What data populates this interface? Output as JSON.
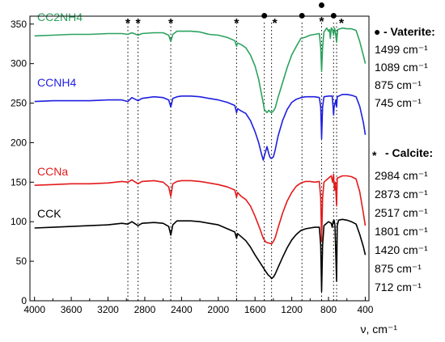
{
  "chart_data": {
    "type": "line",
    "xlabel": "ν, cm⁻¹",
    "xlim": [
      4050,
      360
    ],
    "ylim": [
      0,
      360
    ],
    "x_ticks": [
      4000,
      3600,
      3200,
      2800,
      2400,
      2000,
      1600,
      1200,
      800,
      400
    ],
    "y_ticks": [
      0,
      50,
      100,
      150,
      200,
      250,
      300,
      350
    ],
    "grid": false,
    "series": [
      {
        "name": "CC2NH4",
        "color": "#2ca25f",
        "points": [
          [
            4000,
            335
          ],
          [
            3800,
            336
          ],
          [
            3600,
            337
          ],
          [
            3400,
            337
          ],
          [
            3200,
            338
          ],
          [
            3050,
            338
          ],
          [
            2984,
            337
          ],
          [
            2940,
            339
          ],
          [
            2873,
            336
          ],
          [
            2830,
            338
          ],
          [
            2700,
            339
          ],
          [
            2600,
            339
          ],
          [
            2540,
            336
          ],
          [
            2517,
            328
          ],
          [
            2495,
            337
          ],
          [
            2450,
            341
          ],
          [
            2400,
            341
          ],
          [
            2300,
            341
          ],
          [
            2200,
            340
          ],
          [
            2100,
            337
          ],
          [
            2000,
            336
          ],
          [
            1900,
            333
          ],
          [
            1820,
            329
          ],
          [
            1801,
            322
          ],
          [
            1790,
            326
          ],
          [
            1750,
            324
          ],
          [
            1700,
            320
          ],
          [
            1650,
            311
          ],
          [
            1600,
            297
          ],
          [
            1560,
            280
          ],
          [
            1530,
            262
          ],
          [
            1510,
            250
          ],
          [
            1499,
            242
          ],
          [
            1470,
            238
          ],
          [
            1450,
            241
          ],
          [
            1435,
            239
          ],
          [
            1420,
            238
          ],
          [
            1400,
            240
          ],
          [
            1380,
            244
          ],
          [
            1350,
            257
          ],
          [
            1300,
            276
          ],
          [
            1250,
            295
          ],
          [
            1200,
            311
          ],
          [
            1150,
            322
          ],
          [
            1100,
            332
          ],
          [
            1060,
            333
          ],
          [
            1000,
            336
          ],
          [
            950,
            337
          ],
          [
            900,
            338
          ],
          [
            885,
            320
          ],
          [
            875,
            290
          ],
          [
            865,
            320
          ],
          [
            850,
            340
          ],
          [
            820,
            345
          ],
          [
            800,
            341
          ],
          [
            790,
            343
          ],
          [
            780,
            332
          ],
          [
            770,
            345
          ],
          [
            760,
            344
          ],
          [
            745,
            336
          ],
          [
            735,
            345
          ],
          [
            725,
            340
          ],
          [
            712,
            327
          ],
          [
            700,
            343
          ],
          [
            650,
            345
          ],
          [
            600,
            344
          ],
          [
            550,
            344
          ],
          [
            500,
            342
          ],
          [
            460,
            328
          ],
          [
            420,
            310
          ],
          [
            400,
            300
          ]
        ]
      },
      {
        "name": "CCNH4",
        "color": "#1f1fe0",
        "points": [
          [
            4000,
            252
          ],
          [
            3800,
            253
          ],
          [
            3600,
            253
          ],
          [
            3400,
            253
          ],
          [
            3200,
            254
          ],
          [
            3050,
            254
          ],
          [
            2984,
            252
          ],
          [
            2940,
            257
          ],
          [
            2873,
            253
          ],
          [
            2830,
            256
          ],
          [
            2700,
            258
          ],
          [
            2600,
            257
          ],
          [
            2540,
            254
          ],
          [
            2517,
            245
          ],
          [
            2495,
            256
          ],
          [
            2450,
            258
          ],
          [
            2400,
            259
          ],
          [
            2300,
            259
          ],
          [
            2200,
            258
          ],
          [
            2100,
            256
          ],
          [
            2000,
            254
          ],
          [
            1900,
            251
          ],
          [
            1820,
            247
          ],
          [
            1801,
            238
          ],
          [
            1790,
            243
          ],
          [
            1750,
            240
          ],
          [
            1700,
            237
          ],
          [
            1650,
            228
          ],
          [
            1600,
            214
          ],
          [
            1560,
            200
          ],
          [
            1530,
            186
          ],
          [
            1510,
            178
          ],
          [
            1499,
            183
          ],
          [
            1470,
            195
          ],
          [
            1450,
            186
          ],
          [
            1435,
            181
          ],
          [
            1420,
            180
          ],
          [
            1400,
            182
          ],
          [
            1380,
            191
          ],
          [
            1350,
            208
          ],
          [
            1300,
            228
          ],
          [
            1250,
            242
          ],
          [
            1200,
            251
          ],
          [
            1150,
            255
          ],
          [
            1100,
            257
          ],
          [
            1050,
            258
          ],
          [
            1000,
            258
          ],
          [
            950,
            258
          ],
          [
            900,
            257
          ],
          [
            885,
            245
          ],
          [
            875,
            205
          ],
          [
            865,
            245
          ],
          [
            850,
            258
          ],
          [
            800,
            259
          ],
          [
            760,
            259
          ],
          [
            750,
            245
          ],
          [
            745,
            235
          ],
          [
            740,
            245
          ],
          [
            720,
            254
          ],
          [
            712,
            245
          ],
          [
            705,
            258
          ],
          [
            650,
            261
          ],
          [
            600,
            261
          ],
          [
            550,
            260
          ],
          [
            500,
            258
          ],
          [
            460,
            246
          ],
          [
            420,
            225
          ],
          [
            400,
            210
          ]
        ]
      },
      {
        "name": "CCNa",
        "color": "#e41a1c",
        "points": [
          [
            4000,
            146
          ],
          [
            3800,
            147
          ],
          [
            3600,
            148
          ],
          [
            3400,
            148
          ],
          [
            3200,
            149
          ],
          [
            3050,
            151
          ],
          [
            2984,
            150
          ],
          [
            2940,
            153
          ],
          [
            2873,
            148
          ],
          [
            2830,
            151
          ],
          [
            2700,
            152
          ],
          [
            2600,
            150
          ],
          [
            2540,
            144
          ],
          [
            2517,
            132
          ],
          [
            2495,
            148
          ],
          [
            2450,
            151
          ],
          [
            2400,
            152
          ],
          [
            2300,
            152
          ],
          [
            2200,
            151
          ],
          [
            2100,
            149
          ],
          [
            2000,
            147
          ],
          [
            1900,
            144
          ],
          [
            1820,
            140
          ],
          [
            1801,
            131
          ],
          [
            1790,
            137
          ],
          [
            1750,
            132
          ],
          [
            1700,
            128
          ],
          [
            1650,
            120
          ],
          [
            1600,
            107
          ],
          [
            1550,
            92
          ],
          [
            1510,
            79
          ],
          [
            1480,
            74
          ],
          [
            1450,
            73
          ],
          [
            1420,
            72
          ],
          [
            1400,
            75
          ],
          [
            1380,
            80
          ],
          [
            1350,
            92
          ],
          [
            1300,
            111
          ],
          [
            1250,
            126
          ],
          [
            1200,
            137
          ],
          [
            1150,
            145
          ],
          [
            1100,
            149
          ],
          [
            1050,
            151
          ],
          [
            1000,
            151
          ],
          [
            950,
            150
          ],
          [
            900,
            151
          ],
          [
            885,
            130
          ],
          [
            875,
            75
          ],
          [
            865,
            130
          ],
          [
            850,
            150
          ],
          [
            800,
            155
          ],
          [
            770,
            158
          ],
          [
            755,
            150
          ],
          [
            745,
            160
          ],
          [
            735,
            140
          ],
          [
            725,
            150
          ],
          [
            712,
            120
          ],
          [
            705,
            155
          ],
          [
            650,
            158
          ],
          [
            600,
            158
          ],
          [
            550,
            157
          ],
          [
            500,
            154
          ],
          [
            460,
            138
          ],
          [
            420,
            110
          ],
          [
            400,
            95
          ]
        ]
      },
      {
        "name": "CCK",
        "color": "#000000",
        "points": [
          [
            4000,
            92
          ],
          [
            3800,
            93
          ],
          [
            3600,
            94
          ],
          [
            3400,
            95
          ],
          [
            3200,
            96
          ],
          [
            3050,
            98
          ],
          [
            2984,
            97
          ],
          [
            2940,
            100
          ],
          [
            2873,
            95
          ],
          [
            2830,
            98
          ],
          [
            2700,
            99
          ],
          [
            2600,
            98
          ],
          [
            2540,
            94
          ],
          [
            2517,
            83
          ],
          [
            2495,
            96
          ],
          [
            2450,
            101
          ],
          [
            2400,
            101
          ],
          [
            2300,
            101
          ],
          [
            2200,
            100
          ],
          [
            2100,
            98
          ],
          [
            2000,
            96
          ],
          [
            1900,
            91
          ],
          [
            1820,
            87
          ],
          [
            1801,
            79
          ],
          [
            1790,
            85
          ],
          [
            1750,
            81
          ],
          [
            1700,
            76
          ],
          [
            1650,
            68
          ],
          [
            1600,
            58
          ],
          [
            1550,
            49
          ],
          [
            1500,
            40
          ],
          [
            1460,
            33
          ],
          [
            1430,
            30
          ],
          [
            1420,
            28
          ],
          [
            1400,
            30
          ],
          [
            1380,
            34
          ],
          [
            1350,
            42
          ],
          [
            1300,
            55
          ],
          [
            1250,
            67
          ],
          [
            1200,
            77
          ],
          [
            1150,
            84
          ],
          [
            1100,
            89
          ],
          [
            1050,
            91
          ],
          [
            1000,
            92
          ],
          [
            950,
            93
          ],
          [
            900,
            93
          ],
          [
            885,
            70
          ],
          [
            875,
            12
          ],
          [
            865,
            70
          ],
          [
            850,
            95
          ],
          [
            800,
            100
          ],
          [
            770,
            98
          ],
          [
            760,
            93
          ],
          [
            750,
            100
          ],
          [
            740,
            102
          ],
          [
            730,
            95
          ],
          [
            712,
            25
          ],
          [
            705,
            95
          ],
          [
            690,
            102
          ],
          [
            650,
            103
          ],
          [
            600,
            102
          ],
          [
            550,
            100
          ],
          [
            500,
            97
          ],
          [
            460,
            84
          ],
          [
            420,
            68
          ],
          [
            400,
            58
          ]
        ]
      }
    ],
    "marker_lines": [
      2984,
      2873,
      2517,
      1801,
      1499,
      1420,
      1089,
      875,
      745,
      712
    ],
    "peak_marks": [
      {
        "x": 2984,
        "symbol": "*"
      },
      {
        "x": 2873,
        "symbol": "*"
      },
      {
        "x": 2517,
        "symbol": "*"
      },
      {
        "x": 1801,
        "symbol": "*"
      },
      {
        "x": 1499,
        "symbol": "●"
      },
      {
        "x": 1420,
        "symbol": "*"
      },
      {
        "x": 1089,
        "symbol": "●"
      },
      {
        "x": 875,
        "symbol": "●"
      },
      {
        "x": 875,
        "symbol": "*"
      },
      {
        "x": 745,
        "symbol": "●"
      },
      {
        "x": 712,
        "symbol": "*"
      }
    ]
  },
  "legend": {
    "vaterite": {
      "symbol": "●",
      "title": "- Vaterite:",
      "lines": [
        "1499 cm⁻¹",
        "1089 cm⁻¹",
        "875 cm⁻¹",
        "745 cm⁻¹"
      ]
    },
    "calcite": {
      "symbol": "*",
      "title": "- Calcite:",
      "lines": [
        "2984 cm⁻¹",
        "2873 cm⁻¹",
        "2517 cm⁻¹",
        "1801 cm⁻¹",
        "1420 cm⁻¹",
        "875 cm⁻¹",
        "712 cm⁻¹"
      ]
    }
  }
}
